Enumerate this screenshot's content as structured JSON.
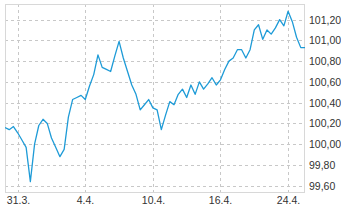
{
  "chart_data": {
    "type": "line",
    "color": "#1e9bd7",
    "grid": true,
    "categories": [
      null,
      null,
      null,
      "31.3.",
      null,
      null,
      null,
      null,
      null,
      null,
      null,
      null,
      null,
      null,
      null,
      null,
      null,
      null,
      null,
      "4.4.",
      null,
      null,
      null,
      null,
      null,
      null,
      null,
      null,
      null,
      null,
      null,
      null,
      null,
      null,
      null,
      "10.4.",
      null,
      null,
      null,
      null,
      null,
      null,
      null,
      null,
      null,
      null,
      null,
      null,
      null,
      null,
      null,
      "16.4.",
      null,
      null,
      null,
      null,
      null,
      null,
      null,
      null,
      null,
      null,
      null,
      null,
      null,
      null,
      null,
      "24.4.",
      null,
      null,
      null,
      null
    ],
    "values": [
      100.16,
      100.14,
      100.17,
      100.11,
      100.04,
      99.97,
      99.64,
      100.0,
      100.18,
      100.24,
      100.2,
      100.06,
      99.97,
      99.88,
      99.95,
      100.26,
      100.43,
      100.45,
      100.47,
      100.43,
      100.56,
      100.67,
      100.86,
      100.74,
      100.72,
      100.7,
      100.85,
      100.99,
      100.83,
      100.7,
      100.57,
      100.48,
      100.33,
      100.38,
      100.43,
      100.35,
      100.33,
      100.14,
      100.28,
      100.41,
      100.38,
      100.48,
      100.53,
      100.45,
      100.57,
      100.48,
      100.6,
      100.53,
      100.58,
      100.64,
      100.57,
      100.62,
      100.72,
      100.8,
      100.83,
      100.91,
      100.91,
      100.83,
      100.91,
      101.1,
      101.15,
      101.01,
      101.1,
      101.06,
      101.12,
      101.2,
      101.14,
      101.28,
      101.18,
      101.03,
      100.93,
      100.93
    ],
    "ylim": [
      99.53,
      101.35
    ],
    "yticks": [
      {
        "value": 99.6,
        "label": "99,60"
      },
      {
        "value": 99.8,
        "label": "99,80"
      },
      {
        "value": 100.0,
        "label": "100,00"
      },
      {
        "value": 100.2,
        "label": "100,20"
      },
      {
        "value": 100.4,
        "label": "100,40"
      },
      {
        "value": 100.6,
        "label": "100,60"
      },
      {
        "value": 100.8,
        "label": "100,80"
      },
      {
        "value": 101.0,
        "label": "101,00"
      },
      {
        "value": 101.2,
        "label": "101,20"
      }
    ]
  }
}
